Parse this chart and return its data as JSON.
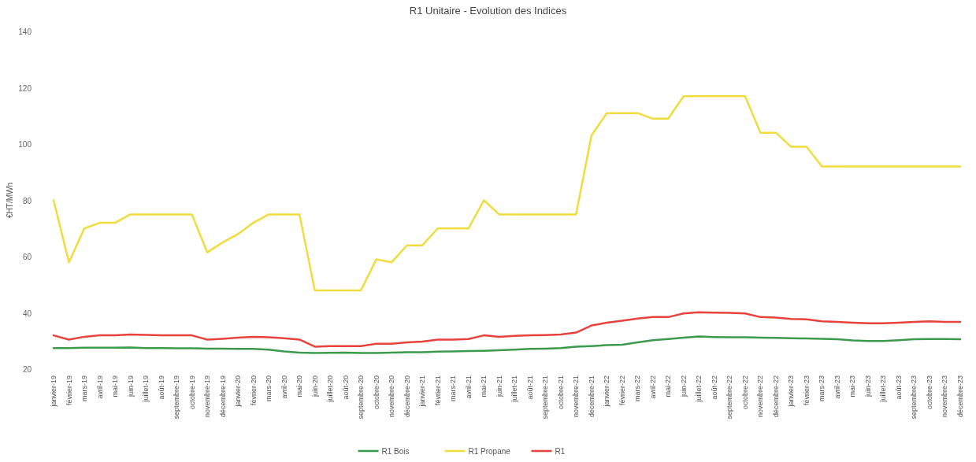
{
  "chart_data": {
    "type": "line",
    "title": "R1 Unitaire - Evolution des Indices",
    "ylabel": "€HT/MWh",
    "categories": [
      "janvier-19",
      "février-19",
      "mars-19",
      "avril-19",
      "mai-19",
      "juin-19",
      "juillet-19",
      "août-19",
      "septembre-19",
      "octobre-19",
      "novembre-19",
      "décembre-19",
      "janvier-20",
      "février-20",
      "mars-20",
      "avril-20",
      "mai-20",
      "juin-20",
      "juillet-20",
      "août-20",
      "septembre-20",
      "octobre-20",
      "novembre-20",
      "décembre-20",
      "janvier-21",
      "février-21",
      "mars-21",
      "avril-21",
      "mai-21",
      "juin-21",
      "juillet-21",
      "août-21",
      "septembre-21",
      "octobre-21",
      "novembre-21",
      "décembre-21",
      "janvier-22",
      "février-22",
      "mars-22",
      "avril-22",
      "mai-22",
      "juin-22",
      "juillet-22",
      "août-22",
      "septembre-22",
      "octobre-22",
      "novembre-22",
      "décembre-22",
      "janvier-23",
      "février-23",
      "mars-23",
      "avril-23",
      "mai-23",
      "juin-23",
      "juillet-23",
      "août-23",
      "septembre-23",
      "octobre-23",
      "novembre-23",
      "décembre-23"
    ],
    "series": [
      {
        "name": "R1 Bois",
        "color": "#3c9a4c",
        "values": [
          27.5,
          27.5,
          27.6,
          27.6,
          27.6,
          27.7,
          27.5,
          27.5,
          27.4,
          27.4,
          27.3,
          27.3,
          27.2,
          27.2,
          26.9,
          26.3,
          25.9,
          25.7,
          25.8,
          25.9,
          25.7,
          25.7,
          25.9,
          26,
          26,
          26.2,
          26.3,
          26.4,
          26.5,
          26.7,
          26.9,
          27.2,
          27.3,
          27.5,
          28,
          28.2,
          28.5,
          28.7,
          29.5,
          30.3,
          30.7,
          31.2,
          31.6,
          31.4,
          31.3,
          31.3,
          31.2,
          31.1,
          31,
          30.9,
          30.8,
          30.6,
          30.2,
          30,
          30,
          30.3,
          30.6,
          30.7,
          30.7,
          30.6
        ]
      },
      {
        "name": "R1 Propane",
        "color": "#f0dc3c",
        "values": [
          80,
          58,
          70,
          72,
          72,
          75,
          75,
          75,
          75,
          75,
          61.5,
          65,
          68,
          72,
          75,
          75,
          75,
          48,
          48,
          48,
          48,
          59,
          58,
          64,
          64,
          70,
          70,
          70,
          80,
          75,
          75,
          75,
          75,
          75,
          75,
          103,
          111,
          111,
          111,
          109,
          109,
          117,
          117,
          117,
          117,
          117,
          104,
          104,
          99,
          99,
          92,
          92,
          92,
          92,
          92,
          92,
          92,
          92,
          92,
          92
        ]
      },
      {
        "name": "R1",
        "color": "#e8423c",
        "values": [
          32,
          30.5,
          31.5,
          32,
          32,
          32.3,
          32.2,
          32,
          32,
          32,
          30.5,
          30.8,
          31.2,
          31.5,
          31.3,
          31,
          30.5,
          28,
          28.2,
          28.2,
          28.2,
          29,
          29,
          29.5,
          29.8,
          30.5,
          30.5,
          30.7,
          32,
          31.5,
          31.8,
          32,
          32.1,
          32.3,
          33,
          35.5,
          36.5,
          37.2,
          38,
          38.5,
          38.5,
          39.8,
          40.2,
          40.1,
          40,
          39.8,
          38.5,
          38.3,
          37.8,
          37.7,
          37,
          36.8,
          36.5,
          36.3,
          36.3,
          36.5,
          36.8,
          37,
          36.8,
          36.8
        ]
      }
    ],
    "ylim": [
      20,
      140
    ],
    "yticks": [
      20,
      40,
      60,
      80,
      100,
      120,
      140
    ],
    "legend": "bottom"
  }
}
